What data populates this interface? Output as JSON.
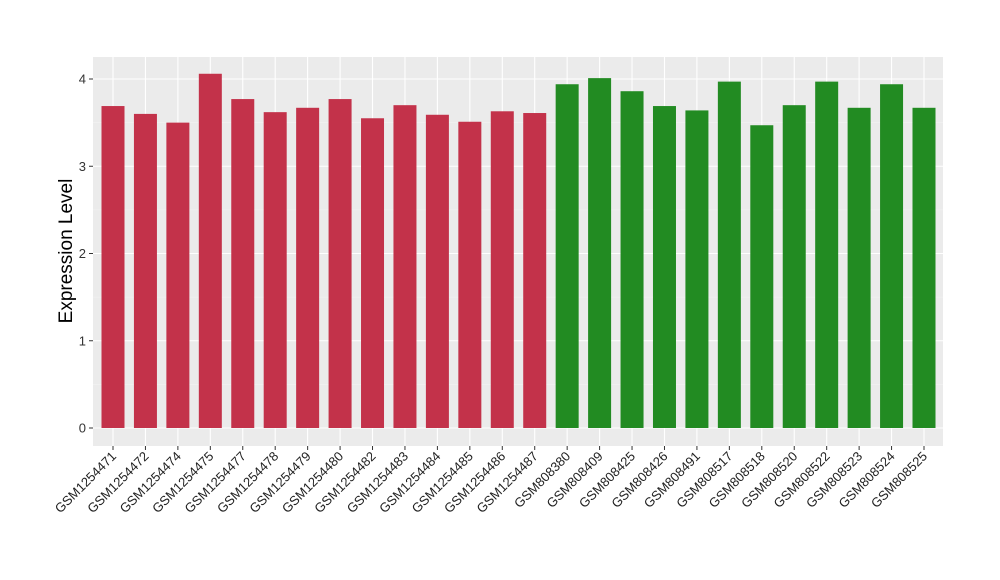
{
  "chart_data": {
    "type": "bar",
    "title": "",
    "xlabel": "",
    "ylabel": "Expression Level",
    "ylim": [
      0,
      4.2
    ],
    "yticks": [
      0,
      1,
      2,
      3,
      4
    ],
    "grid": true,
    "categories": [
      "GSM1254471",
      "GSM1254472",
      "GSM1254474",
      "GSM1254475",
      "GSM1254477",
      "GSM1254478",
      "GSM1254479",
      "GSM1254480",
      "GSM1254482",
      "GSM1254483",
      "GSM1254484",
      "GSM1254485",
      "GSM1254486",
      "GSM1254487",
      "GSM808380",
      "GSM808409",
      "GSM808425",
      "GSM808426",
      "GSM808491",
      "GSM808517",
      "GSM808518",
      "GSM808520",
      "GSM808522",
      "GSM808523",
      "GSM808524",
      "GSM808525"
    ],
    "values": [
      3.69,
      3.6,
      3.5,
      4.06,
      3.77,
      3.62,
      3.67,
      3.77,
      3.55,
      3.7,
      3.59,
      3.51,
      3.63,
      3.61,
      3.94,
      4.01,
      3.86,
      3.69,
      3.64,
      3.97,
      3.47,
      3.7,
      3.97,
      3.67,
      3.94,
      3.67
    ],
    "groups": [
      "a",
      "a",
      "a",
      "a",
      "a",
      "a",
      "a",
      "a",
      "a",
      "a",
      "a",
      "a",
      "a",
      "a",
      "b",
      "b",
      "b",
      "b",
      "b",
      "b",
      "b",
      "b",
      "b",
      "b",
      "b",
      "b"
    ],
    "colors": {
      "a": "#C3324A",
      "b": "#228B22"
    }
  }
}
